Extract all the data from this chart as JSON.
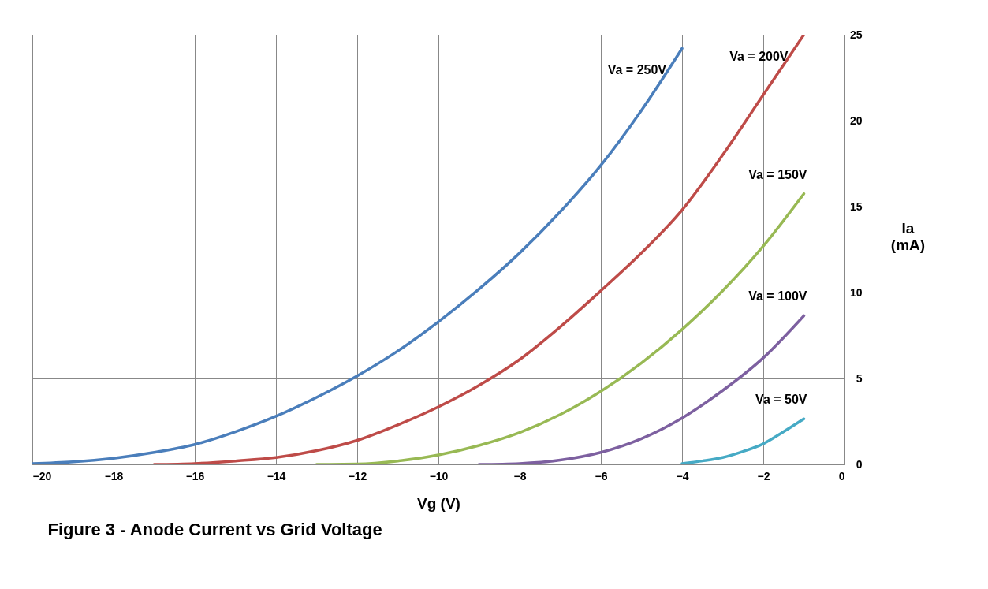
{
  "chart_data": {
    "type": "line",
    "title": "Figure 3 - Anode Current vs Grid Voltage",
    "xlabel": "Vg (V)",
    "ylabel": "Ia (mA)",
    "xlim": [
      -20,
      0
    ],
    "xticks": [
      -20,
      -18,
      -16,
      -14,
      -12,
      -10,
      -8,
      -6,
      -4,
      -2,
      0
    ],
    "ylim": [
      0,
      25
    ],
    "yticks": [
      0,
      5,
      10,
      15,
      20,
      25
    ],
    "grid": true,
    "legend": false,
    "marker": "none",
    "line_style": "solid",
    "series": [
      {
        "name": "Va = 250V",
        "color": "#4a7ebb",
        "x": [
          -20,
          -19,
          -18,
          -17,
          -16,
          -15,
          -14,
          -13,
          -12,
          -11,
          -10,
          -9,
          -8,
          -7,
          -6,
          -5,
          -4
        ],
        "values": [
          0.05,
          0.15,
          0.36,
          0.7,
          1.16,
          1.9,
          2.8,
          3.9,
          5.15,
          6.6,
          8.3,
          10.2,
          12.3,
          14.7,
          17.4,
          20.6,
          24.2
        ]
      },
      {
        "name": "Va = 200V",
        "color": "#be4b48",
        "x": [
          -17,
          -16,
          -15,
          -14,
          -13,
          -12,
          -11,
          -10,
          -9,
          -8,
          -7,
          -6,
          -5,
          -4,
          -3,
          -2,
          -1
        ],
        "values": [
          0,
          0.05,
          0.2,
          0.4,
          0.8,
          1.4,
          2.3,
          3.35,
          4.6,
          6.1,
          8.0,
          10.1,
          12.3,
          14.8,
          18.0,
          21.5,
          25
        ]
      },
      {
        "name": "Va = 150V",
        "color": "#98b954",
        "x": [
          -13,
          -12,
          -11,
          -10,
          -9,
          -8,
          -7,
          -6,
          -5,
          -4,
          -3,
          -2,
          -1
        ],
        "values": [
          0,
          0.02,
          0.2,
          0.55,
          1.1,
          1.85,
          2.9,
          4.25,
          5.9,
          7.85,
          10.1,
          12.7,
          15.75
        ]
      },
      {
        "name": "Va = 100V",
        "color": "#7d60a0",
        "x": [
          -9,
          -8,
          -7,
          -6,
          -5,
          -4,
          -3,
          -2,
          -1
        ],
        "values": [
          0,
          0.05,
          0.25,
          0.7,
          1.5,
          2.7,
          4.3,
          6.2,
          8.65
        ]
      },
      {
        "name": "Va =  50V",
        "color": "#46aac5",
        "x": [
          -4,
          -3.5,
          -3,
          -2.5,
          -2,
          -1.5,
          -1
        ],
        "values": [
          0.05,
          0.2,
          0.4,
          0.75,
          1.2,
          1.9,
          2.65
        ]
      }
    ]
  }
}
